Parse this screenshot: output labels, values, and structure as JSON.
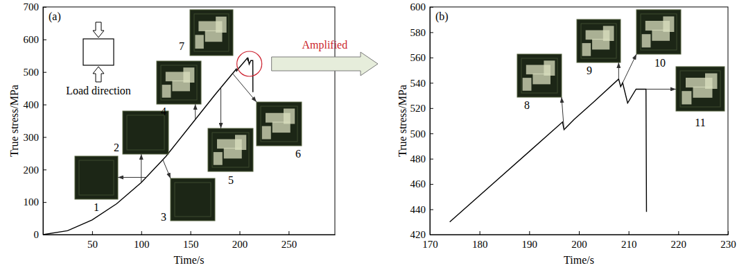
{
  "chart_data": [
    {
      "type": "line",
      "panel_label": "(a)",
      "x_label": "Time/s",
      "y_label": "True stress/MPa",
      "x": [
        0,
        25,
        50,
        75,
        100,
        125,
        150,
        175,
        196.7,
        197,
        199,
        203,
        208,
        208.4,
        208.8,
        209.8,
        211.5,
        213.5,
        213.6
      ],
      "values": [
        0,
        12,
        45,
        95,
        160,
        240,
        335,
        430,
        509,
        503,
        511,
        525,
        543,
        537,
        540,
        524,
        535,
        535,
        438
      ],
      "color": "#000000",
      "xlim": [
        0,
        297
      ],
      "xticks": [
        50,
        100,
        150,
        200,
        250
      ],
      "ylim": [
        0,
        700
      ],
      "yticks": [
        0,
        100,
        200,
        300,
        400,
        500,
        600,
        700
      ],
      "inset_label": "Load direction",
      "callout": {
        "text": "Amplified",
        "x": 210,
        "y": 525,
        "color": "#cc1f2d"
      },
      "annotations": [
        {
          "text": "1",
          "x": 105,
          "y": 176
        },
        {
          "text": "2",
          "x": 100,
          "y": 160
        },
        {
          "text": "3",
          "x": 122,
          "y": 230
        },
        {
          "text": "4",
          "x": 155,
          "y": 354
        },
        {
          "text": "5",
          "x": 181,
          "y": 452
        },
        {
          "text": "6",
          "x": 193,
          "y": 495
        },
        {
          "text": "7"
        }
      ]
    },
    {
      "type": "line",
      "panel_label": "(b)",
      "x_label": "Time/s",
      "y_label": "True stress/MPa",
      "x": [
        174,
        196.7,
        197,
        199,
        203,
        208,
        208.4,
        208.8,
        209.8,
        211.5,
        213.5,
        213.6
      ],
      "values": [
        430,
        509,
        503,
        511,
        525,
        543,
        537,
        540,
        524,
        535,
        535,
        438
      ],
      "color": "#000000",
      "xlim": [
        170,
        230
      ],
      "xticks": [
        170,
        180,
        190,
        200,
        210,
        220,
        230
      ],
      "ylim": [
        420,
        600
      ],
      "yticks": [
        420,
        440,
        460,
        480,
        500,
        520,
        540,
        560,
        580,
        600
      ],
      "annotations": [
        {
          "text": "8",
          "x": 197,
          "y": 503
        },
        {
          "text": "9",
          "x": 208,
          "y": 543
        },
        {
          "text": "10",
          "x": 208.8,
          "y": 540
        },
        {
          "text": "11",
          "x": 213.5,
          "y": 535
        }
      ]
    }
  ]
}
